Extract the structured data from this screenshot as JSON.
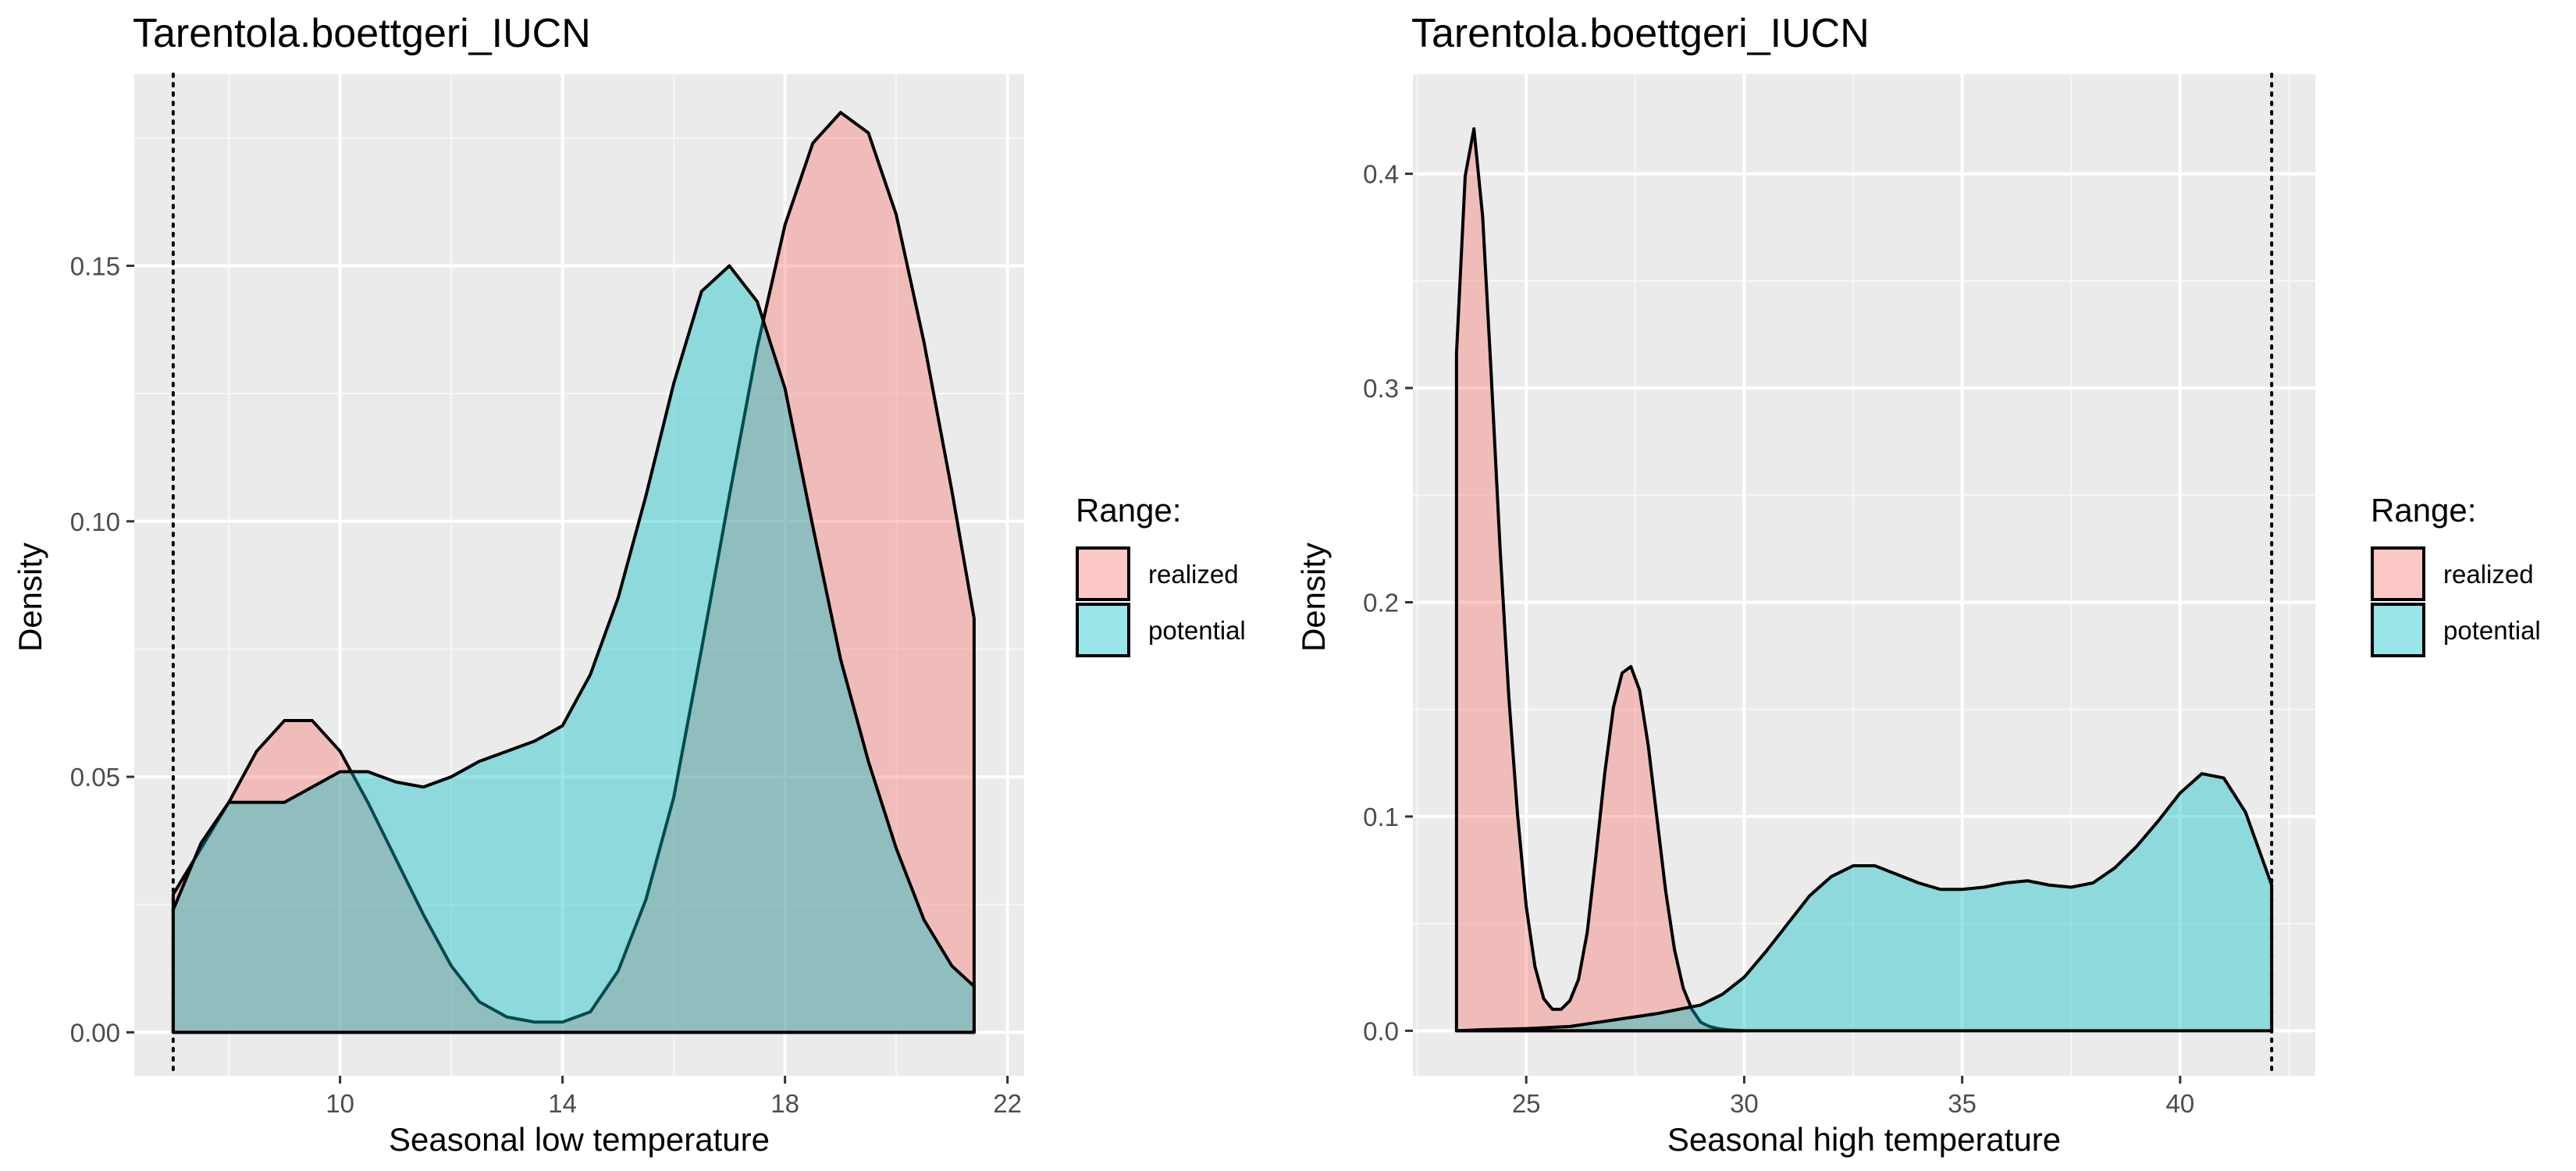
{
  "chart_data": [
    {
      "type": "area",
      "title": "Tarentola.boettgeri_IUCN",
      "xlabel": "Seasonal low temperature",
      "ylabel": "Density",
      "xlim": [
        6.3,
        22.3
      ],
      "ylim": [
        -0.0085,
        0.1875
      ],
      "xticks": [
        10,
        14,
        18,
        22
      ],
      "yticks": [
        0.0,
        0.05,
        0.1,
        0.15
      ],
      "ytick_labels": [
        "0.00",
        "0.05",
        "0.10",
        "0.15"
      ],
      "grid": true,
      "reference_line": 7.0,
      "legend": {
        "title": "Range:",
        "position": "right"
      },
      "series": [
        {
          "name": "realized",
          "color": "#F8766D",
          "x": [
            7.0,
            7.5,
            8.0,
            8.5,
            9.0,
            9.5,
            10.0,
            10.5,
            11.0,
            11.5,
            12.0,
            12.5,
            13.0,
            13.5,
            14.0,
            14.5,
            15.0,
            15.5,
            16.0,
            16.5,
            17.0,
            17.5,
            18.0,
            18.5,
            19.0,
            19.5,
            20.0,
            20.5,
            21.0,
            21.4
          ],
          "y": [
            0.027,
            0.036,
            0.045,
            0.055,
            0.061,
            0.061,
            0.055,
            0.045,
            0.034,
            0.023,
            0.013,
            0.006,
            0.003,
            0.002,
            0.002,
            0.004,
            0.012,
            0.026,
            0.046,
            0.075,
            0.105,
            0.134,
            0.158,
            0.174,
            0.18,
            0.176,
            0.16,
            0.135,
            0.106,
            0.081
          ]
        },
        {
          "name": "potential",
          "color": "#00BFC4",
          "x": [
            7.0,
            7.5,
            8.0,
            8.5,
            9.0,
            9.5,
            10.0,
            10.5,
            11.0,
            11.5,
            12.0,
            12.5,
            13.0,
            13.5,
            14.0,
            14.5,
            15.0,
            15.5,
            16.0,
            16.5,
            17.0,
            17.5,
            18.0,
            18.5,
            19.0,
            19.5,
            20.0,
            20.5,
            21.0,
            21.4
          ],
          "y": [
            0.024,
            0.037,
            0.045,
            0.045,
            0.045,
            0.048,
            0.051,
            0.051,
            0.049,
            0.048,
            0.05,
            0.053,
            0.055,
            0.057,
            0.06,
            0.07,
            0.085,
            0.105,
            0.127,
            0.145,
            0.15,
            0.143,
            0.126,
            0.099,
            0.073,
            0.053,
            0.036,
            0.022,
            0.013,
            0.009
          ]
        }
      ]
    },
    {
      "type": "area",
      "title": "Tarentola.boettgeri_IUCN",
      "xlabel": "Seasonal high temperature",
      "ylabel": "Density",
      "xlim": [
        22.4,
        43.1
      ],
      "ylim": [
        -0.021,
        0.4465
      ],
      "xticks": [
        25,
        30,
        35,
        40
      ],
      "yticks": [
        0.0,
        0.1,
        0.2,
        0.3,
        0.4
      ],
      "ytick_labels": [
        "0.0",
        "0.1",
        "0.2",
        "0.3",
        "0.4"
      ],
      "grid": true,
      "reference_line": 42.1,
      "legend": {
        "title": "Range:",
        "position": "right"
      },
      "series": [
        {
          "name": "realized",
          "color": "#F8766D",
          "x": [
            23.4,
            23.6,
            23.8,
            24.0,
            24.2,
            24.4,
            24.6,
            24.8,
            25.0,
            25.2,
            25.4,
            25.6,
            25.8,
            26.0,
            26.2,
            26.4,
            26.6,
            26.8,
            27.0,
            27.2,
            27.4,
            27.6,
            27.8,
            28.0,
            28.2,
            28.4,
            28.6,
            28.8,
            29.0,
            29.2,
            29.4,
            29.6,
            29.8,
            30.0
          ],
          "y": [
            0.316,
            0.399,
            0.421,
            0.38,
            0.305,
            0.225,
            0.156,
            0.101,
            0.058,
            0.03,
            0.015,
            0.01,
            0.01,
            0.014,
            0.024,
            0.046,
            0.082,
            0.12,
            0.151,
            0.167,
            0.17,
            0.159,
            0.133,
            0.099,
            0.065,
            0.038,
            0.02,
            0.01,
            0.004,
            0.002,
            0.001,
            0.0005,
            0.0002,
            0.0
          ]
        },
        {
          "name": "potential",
          "color": "#00BFC4",
          "x": [
            23.4,
            24.0,
            25.0,
            26.0,
            27.0,
            28.0,
            29.0,
            29.5,
            30.0,
            30.5,
            31.0,
            31.5,
            32.0,
            32.5,
            33.0,
            33.5,
            34.0,
            34.5,
            35.0,
            35.5,
            36.0,
            36.5,
            37.0,
            37.5,
            38.0,
            38.5,
            39.0,
            39.5,
            40.0,
            40.5,
            41.0,
            41.5,
            42.1
          ],
          "y": [
            0.0,
            0.0005,
            0.001,
            0.002,
            0.005,
            0.008,
            0.012,
            0.017,
            0.025,
            0.037,
            0.05,
            0.063,
            0.072,
            0.077,
            0.077,
            0.073,
            0.069,
            0.066,
            0.066,
            0.067,
            0.069,
            0.07,
            0.068,
            0.067,
            0.069,
            0.076,
            0.086,
            0.098,
            0.111,
            0.12,
            0.118,
            0.102,
            0.068
          ]
        }
      ]
    }
  ]
}
